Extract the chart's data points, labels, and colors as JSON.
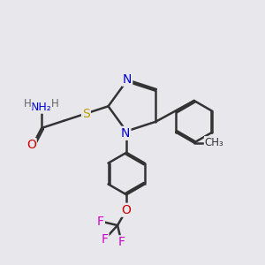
{
  "background_color": "#e8e8ec",
  "bond_color": "#333333",
  "bond_width": 1.8,
  "figsize": [
    3.0,
    3.0
  ],
  "dpi": 100,
  "atoms": {
    "S": {
      "color": "#b8a000",
      "fontsize": 10
    },
    "N": {
      "color": "#0000cc",
      "fontsize": 10
    },
    "O": {
      "color": "#cc0000",
      "fontsize": 10
    },
    "F": {
      "color": "#cc00cc",
      "fontsize": 10
    },
    "H": {
      "color": "#666666",
      "fontsize": 9
    },
    "C": {
      "color": "#333333",
      "fontsize": 9
    }
  }
}
